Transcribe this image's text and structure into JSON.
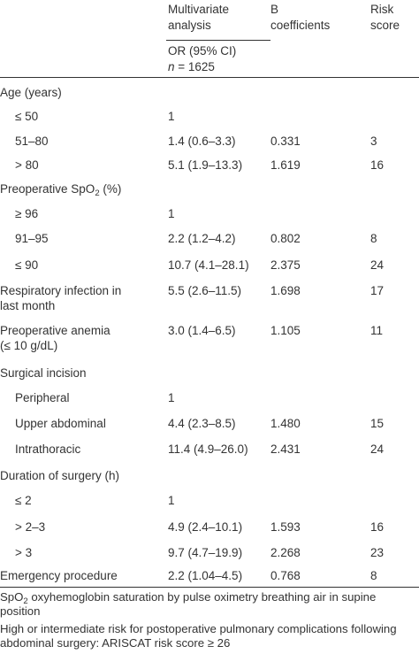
{
  "header": {
    "multivariate_line1": "Multivariate",
    "multivariate_line2": "analysis",
    "or_label": "OR (95% CI)",
    "n_label": "n",
    "n_value": " = 1625",
    "b_line1": "B",
    "b_line2": "coefficients",
    "risk_line1": "Risk",
    "risk_line2": "score"
  },
  "rows": [
    {
      "label": "Age (years)",
      "indent": false
    },
    {
      "label": "≤ 50",
      "indent": true,
      "or": "1"
    },
    {
      "label": "51–80",
      "indent": true,
      "or": "1.4 (0.6–3.3)",
      "b": "0.331",
      "score": "3"
    },
    {
      "label": "> 80",
      "indent": true,
      "or": "5.1 (1.9–13.3)",
      "b": "1.619",
      "score": "16"
    },
    {
      "label_pre": "Preoperative SpO",
      "label_sub": "2",
      "label_post": " (%)",
      "indent": false
    },
    {
      "label": "≥ 96",
      "indent": true,
      "or": "1"
    },
    {
      "label": "91–95",
      "indent": true,
      "or": "2.2 (1.2–4.2)",
      "b": "0.802",
      "score": "8"
    },
    {
      "label": "≤ 90",
      "indent": true,
      "or": "10.7 (4.1–28.1)",
      "b": "2.375",
      "score": "24"
    },
    {
      "label": "Respiratory infection in",
      "label2": "last month",
      "indent": false,
      "or": "5.5 (2.6–11.5)",
      "b": "1.698",
      "score": "17"
    },
    {
      "label": "Preoperative anemia",
      "label2": "(≤ 10 g/dL)",
      "indent": false,
      "or": "3.0 (1.4–6.5)",
      "b": "1.105",
      "score": "11"
    },
    {
      "label": "Surgical incision",
      "indent": false
    },
    {
      "label": "Peripheral",
      "indent": true,
      "or": "1"
    },
    {
      "label": "Upper abdominal",
      "indent": true,
      "or": "4.4 (2.3–8.5)",
      "b": "1.480",
      "score": "15"
    },
    {
      "label": "Intrathoracic",
      "indent": true,
      "or": "11.4 (4.9–26.0)",
      "b": "2.431",
      "score": "24"
    },
    {
      "label": "Duration of surgery (h)",
      "indent": false
    },
    {
      "label": "≤ 2",
      "indent": true,
      "or": "1"
    },
    {
      "label": "> 2–3",
      "indent": true,
      "or": "4.9 (2.4–10.1)",
      "b": "1.593",
      "score": "16"
    },
    {
      "label": "> 3",
      "indent": true,
      "or": "9.7 (4.7–19.9)",
      "b": "2.268",
      "score": "23"
    },
    {
      "label": "Emergency procedure",
      "indent": false,
      "or": "2.2 (1.04–4.5)",
      "b": "0.768",
      "score": "8"
    }
  ],
  "footnotes": {
    "note1_pre": "SpO",
    "note1_sub": "2",
    "note1_post": " oxyhemoglobin saturation by pulse oximetry breathing air in supine position",
    "note2": "High or intermediate risk for postoperative pulmonary complications following abdominal surgery: ARISCAT risk score ≥ 26"
  }
}
